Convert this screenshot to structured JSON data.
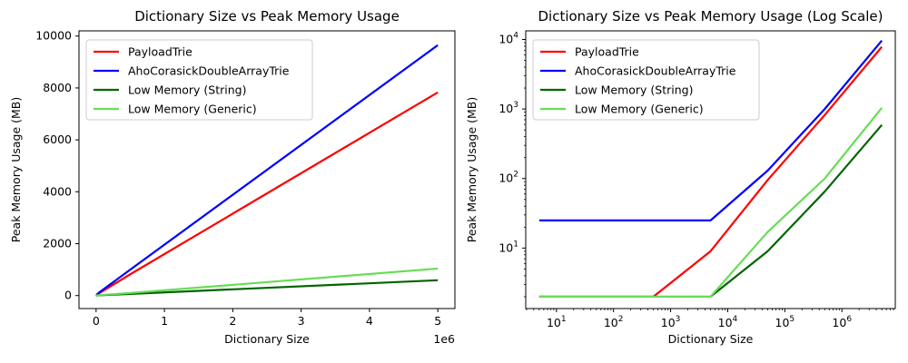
{
  "chart_data": [
    {
      "type": "line",
      "title": "Dictionary Size vs Peak Memory Usage",
      "xlabel": "Dictionary Size",
      "ylabel": "Peak Memory Usage (MB)",
      "x_offset_label": "1e6",
      "xscale": "linear",
      "yscale": "linear",
      "xlim": [
        -250000,
        5250000
      ],
      "ylim": [
        -500,
        10200
      ],
      "xticks": [
        0,
        1000000,
        2000000,
        3000000,
        4000000,
        5000000
      ],
      "xtick_labels": [
        "0",
        "1",
        "2",
        "3",
        "4",
        "5"
      ],
      "yticks": [
        0,
        2000,
        4000,
        6000,
        8000,
        10000
      ],
      "ytick_labels": [
        "0",
        "2000",
        "4000",
        "6000",
        "8000",
        "10000"
      ],
      "grid": false,
      "legend_position": "top-left",
      "x": [
        5,
        50,
        500,
        5000,
        50000,
        500000,
        5000000
      ],
      "series": [
        {
          "name": "PayloadTrie",
          "color": "#ff0000",
          "values": [
            2,
            2,
            2,
            9,
            95,
            820,
            7830
          ]
        },
        {
          "name": "AhoCorasickDoubleArrayTrie",
          "color": "#0000ff",
          "values": [
            25,
            25,
            25,
            25,
            130,
            1000,
            9650
          ]
        },
        {
          "name": "Low Memory (String)",
          "color": "#006400",
          "values": [
            2,
            2,
            2,
            2,
            9,
            65,
            590
          ]
        },
        {
          "name": "Low Memory (Generic)",
          "color": "#66dd55",
          "values": [
            2,
            2,
            2,
            2,
            17,
            100,
            1040
          ]
        }
      ]
    },
    {
      "type": "line",
      "title": "Dictionary Size vs Peak Memory Usage (Log Scale)",
      "xlabel": "Dictionary Size",
      "ylabel": "Peak Memory Usage (MB)",
      "xscale": "log",
      "yscale": "log",
      "xlim": [
        2.9,
        8600000
      ],
      "ylim": [
        1.35,
        13300
      ],
      "xticks": [
        10,
        100,
        1000,
        10000,
        100000,
        1000000
      ],
      "xtick_labels": [
        [
          "10",
          "1"
        ],
        [
          "10",
          "2"
        ],
        [
          "10",
          "3"
        ],
        [
          "10",
          "4"
        ],
        [
          "10",
          "5"
        ],
        [
          "10",
          "6"
        ]
      ],
      "yticks": [
        10,
        100,
        1000,
        10000
      ],
      "ytick_labels": [
        [
          "10",
          "1"
        ],
        [
          "10",
          "2"
        ],
        [
          "10",
          "3"
        ],
        [
          "10",
          "4"
        ]
      ],
      "grid": false,
      "legend_position": "top-left",
      "x": [
        5,
        50,
        500,
        5000,
        50000,
        500000,
        5000000
      ],
      "series": [
        {
          "name": "PayloadTrie",
          "color": "#ff0000",
          "values": [
            2,
            2,
            2,
            9,
            95,
            820,
            7830
          ]
        },
        {
          "name": "AhoCorasickDoubleArrayTrie",
          "color": "#0000ff",
          "values": [
            25,
            25,
            25,
            25,
            130,
            1000,
            9650
          ]
        },
        {
          "name": "Low Memory (String)",
          "color": "#006400",
          "values": [
            2,
            2,
            2,
            2,
            9,
            65,
            590
          ]
        },
        {
          "name": "Low Memory (Generic)",
          "color": "#66dd55",
          "values": [
            2,
            2,
            2,
            2,
            17,
            100,
            1040
          ]
        }
      ]
    }
  ]
}
